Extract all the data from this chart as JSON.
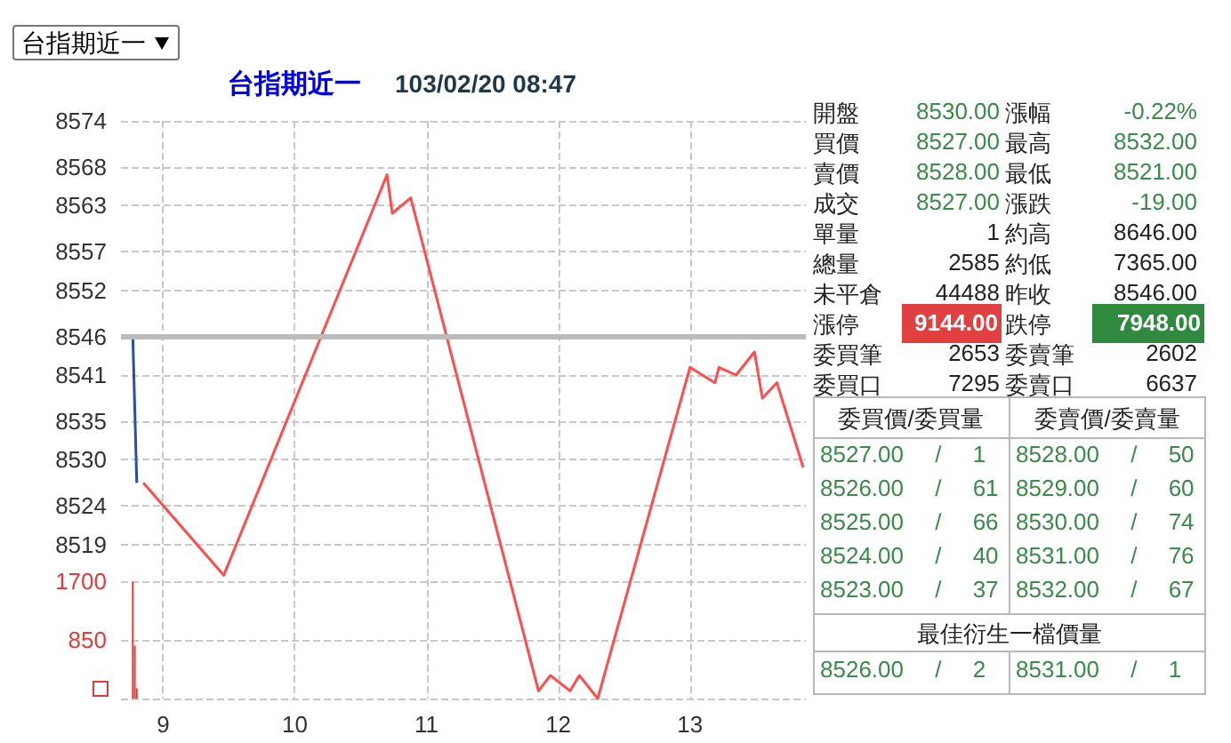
{
  "chart_data": [
    {
      "type": "line",
      "title": "台指期近一",
      "subtitle": "103/02/20 08:47",
      "annotations": [
        "台指期近一"
      ],
      "xlim": [
        8.68,
        13.88
      ],
      "xticks": [
        9,
        10,
        11,
        12,
        13
      ],
      "ylim": [
        8499,
        8574
      ],
      "yticks": [
        8519,
        8524,
        8530,
        8535,
        8541,
        8546,
        8552,
        8557,
        8563,
        8568,
        8574
      ],
      "y2lim": [
        0,
        8400
      ],
      "y2ticks": [
        {
          "value": 0,
          "label": null
        },
        850,
        1700
      ],
      "grid": true,
      "marker": "none",
      "line_style": "solid",
      "ref_lines": [
        {
          "axis": "y",
          "value": 8546,
          "color": "#bbbbbb"
        }
      ],
      "series": [
        {
          "color": "#2a4fa8",
          "x": [
            8.68,
            8.77,
            8.8
          ],
          "values": [
            8546,
            8546,
            8527
          ]
        },
        {
          "color": "#ff4d4d",
          "x": [
            8.85,
            9.46,
            10.7,
            10.74,
            10.88,
            11.85,
            11.94,
            12.09,
            12.16,
            12.3,
            13.0,
            13.19,
            13.22,
            13.35,
            13.49,
            13.55,
            13.66,
            13.86
          ],
          "values": [
            8527,
            8515,
            8567,
            8562,
            8564,
            8500,
            8502,
            8500,
            8502,
            8499,
            8542,
            8540,
            8542,
            8541,
            8544,
            8538,
            8540,
            8529
          ]
        },
        {
          "type": "bar",
          "axis": "y2",
          "color": "#e03c3c",
          "x": [
            8.77,
            8.785,
            8.8
          ],
          "values": [
            1700,
            770,
            150
          ]
        }
      ]
    },
    {
      "type": "other",
      "annotations": [
        "開盤",
        "8530.00",
        "漲幅",
        "-0.22%",
        "買價",
        "8527.00",
        "最高",
        "8532.00",
        "賣價",
        "8528.00",
        "最低",
        "8521.00",
        "成交",
        "8527.00",
        "漲跌",
        "-19.00",
        "單量",
        "1",
        "約高",
        "8646.00",
        "總量",
        "2585",
        "約低",
        "7365.00",
        "未平倉",
        "44488",
        "昨收",
        "8546.00",
        "漲停",
        "9144.00",
        "跌停",
        "7948.00",
        "委買筆",
        "2653",
        "委賣筆",
        "2602",
        "委買口",
        "7295",
        "委賣口",
        "6637",
        "委買價/委買量",
        "委賣價/委賣量",
        "8527.00 / 1",
        "8528.00 / 50",
        "8526.00 / 61",
        "8529.00 / 60",
        "8525.00 / 66",
        "8530.00 / 74",
        "8524.00 / 40",
        "8531.00 / 76",
        "8523.00 / 37",
        "8532.00 / 67",
        "最佳衍生一檔價量",
        "8526.00 / 2",
        "8531.00 / 1"
      ]
    }
  ]
}
